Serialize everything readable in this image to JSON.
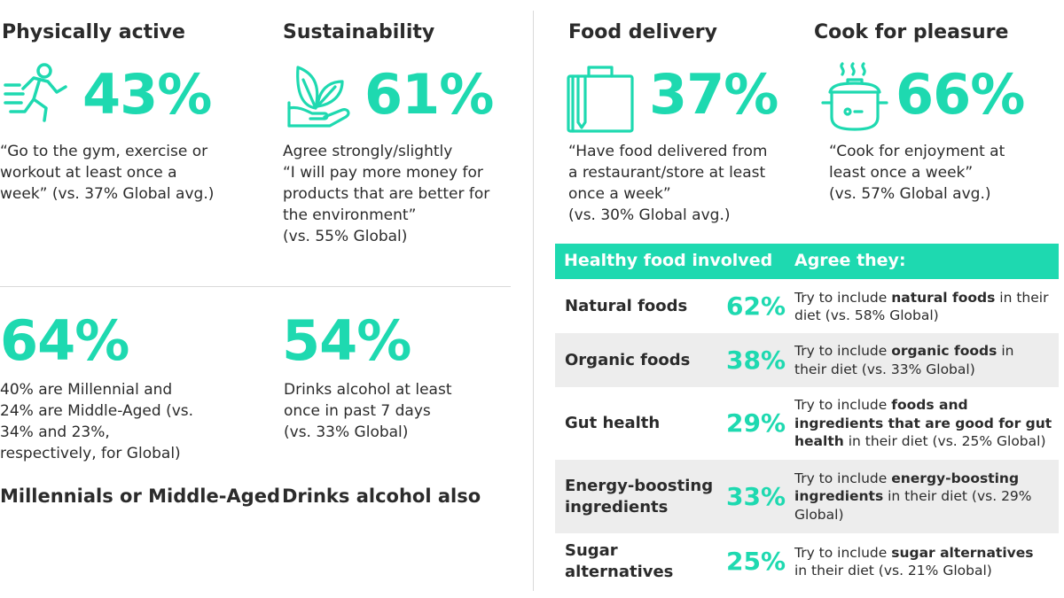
{
  "colors": {
    "accent": "#1ed9b0",
    "text": "#2b2b2b",
    "divider": "#d9d9d9",
    "row_alt": "#ededed"
  },
  "physically_active": {
    "title": "Physically active",
    "icon": "runner-icon",
    "stat": "43%",
    "lines": [
      "“Go to the gym, exercise or",
      "workout at least once a",
      "week” (vs. 37% Global avg.)"
    ]
  },
  "sustainability": {
    "title": "Sustainability",
    "icon": "plant-in-hand-icon",
    "stat": "61%",
    "lines": [
      "Agree strongly/slightly",
      "“I will pay more money for",
      "products that are better for",
      "the environment”",
      "(vs. 55% Global)"
    ]
  },
  "food_delivery": {
    "title": "Food delivery",
    "icon": "delivery-bag-icon",
    "stat": "37%",
    "lines": [
      "“Have food delivered from",
      "a restaurant/store at least",
      "once a week”",
      "(vs. 30% Global avg.)"
    ]
  },
  "cook_for_pleasure": {
    "title": "Cook for pleasure",
    "icon": "cooking-pot-icon",
    "stat": "66%",
    "lines": [
      "“Cook for enjoyment at",
      "least once a week”",
      "(vs. 57% Global avg.)"
    ]
  },
  "millennials": {
    "stat": "64%",
    "lines": [
      "40% are Millennial and",
      "24% are Middle-Aged (vs.",
      "34% and 23%,",
      "respectively, for Global)"
    ],
    "label": "Millennials or Middle-Aged"
  },
  "alcohol": {
    "stat": "54%",
    "lines": [
      "Drinks alcohol at least",
      "once in past 7 days",
      "(vs. 33% Global)"
    ],
    "label": "Drinks alcohol also"
  },
  "healthy_table": {
    "header_left": "Healthy food involved",
    "header_right": "Agree they:",
    "rows": [
      {
        "label": [
          "Natural foods"
        ],
        "pct": "62%",
        "desc": [
          [
            "Try to include ",
            {
              "b": "natural foods"
            },
            " in their"
          ],
          [
            "diet (vs. 58% Global)"
          ]
        ]
      },
      {
        "label": [
          "Organic foods"
        ],
        "pct": "38%",
        "desc": [
          [
            "Try to include ",
            {
              "b": "organic foods"
            },
            " in"
          ],
          [
            "their diet (vs. 33% Global)"
          ]
        ]
      },
      {
        "label": [
          "Gut health"
        ],
        "pct": "29%",
        "desc": [
          [
            "Try to include ",
            {
              "b": "foods and"
            }
          ],
          [
            {
              "b": "ingredients that are good for gut"
            }
          ],
          [
            {
              "b": "health"
            },
            " in their diet (vs. 25% Global)"
          ]
        ]
      },
      {
        "label": [
          "Energy-boosting",
          "ingredients"
        ],
        "pct": "33%",
        "desc": [
          [
            "Try to include ",
            {
              "b": "energy-boosting"
            }
          ],
          [
            {
              "b": "ingredients"
            },
            " in their diet (vs. 29%"
          ],
          [
            "Global)"
          ]
        ]
      },
      {
        "label": [
          "Sugar",
          "alternatives"
        ],
        "pct": "25%",
        "desc": [
          [
            "Try to include ",
            {
              "b": "sugar alternatives"
            }
          ],
          [
            "in their diet (vs. 21% Global)"
          ]
        ]
      }
    ]
  }
}
